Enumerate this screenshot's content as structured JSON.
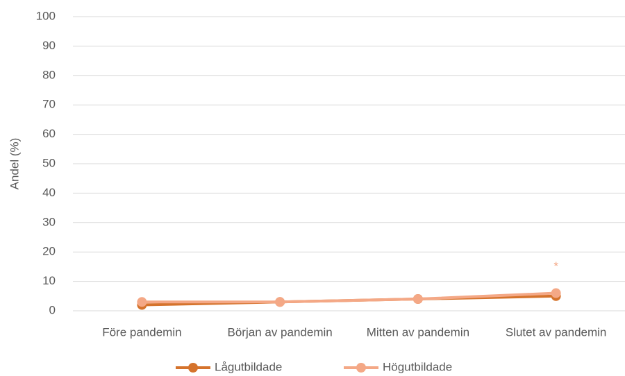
{
  "chart_data": {
    "type": "line",
    "y_label": "Andel (%)",
    "categories": [
      "Före pandemin",
      "Början av pandemin",
      "Mitten av pandemin",
      "Slutet av pandemin"
    ],
    "series": [
      {
        "name": "Lågutbildade",
        "color": "#d5732c",
        "values": [
          2,
          3,
          4,
          5
        ]
      },
      {
        "name": "Högutbildade",
        "color": "#f4a886",
        "values": [
          3,
          3,
          4,
          6
        ]
      }
    ],
    "annotation": "*",
    "ylim": [
      0,
      100
    ],
    "yticks": [
      0,
      10,
      20,
      30,
      40,
      50,
      60,
      70,
      80,
      90,
      100
    ],
    "grid": true,
    "legend": "bottom"
  }
}
